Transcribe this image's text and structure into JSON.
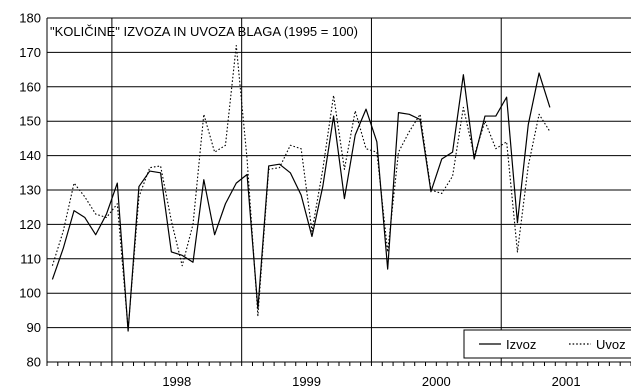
{
  "chart_data": {
    "type": "line",
    "title": "\"KOLIČINE\" IZVOZA IN UVOZA BLAGA (1995 = 100)",
    "xlabel": "",
    "ylabel": "",
    "ylim": [
      80,
      180
    ],
    "yticks": [
      80,
      90,
      100,
      110,
      120,
      130,
      140,
      150,
      160,
      170,
      180
    ],
    "year_labels": [
      "1998",
      "1999",
      "2000",
      "2001"
    ],
    "grid": true,
    "legend_position": "bottom-right",
    "x_months": 54,
    "series": [
      {
        "name": "Izvoz",
        "style": "solid",
        "color": "#000000",
        "values": [
          104,
          113,
          124,
          122,
          117,
          123,
          132,
          89,
          131,
          135.5,
          135,
          112,
          111,
          109,
          133,
          117,
          126,
          132,
          134.5,
          95.5,
          137,
          137.5,
          135,
          128.5,
          116.5,
          131,
          151.5,
          127.5,
          146,
          153.5,
          144,
          107,
          152.5,
          152,
          150.5,
          129.5,
          139,
          141,
          163.5,
          139,
          151.5,
          151.5,
          157,
          120.5,
          149,
          164,
          154
        ]
      },
      {
        "name": "Uvoz",
        "style": "dotted",
        "color": "#000000",
        "values": [
          108,
          118,
          132,
          128,
          123,
          122,
          126,
          89.5,
          128,
          136.5,
          137,
          121,
          108,
          120,
          152,
          141,
          143,
          172,
          139,
          93.5,
          136,
          136.5,
          143,
          142,
          118,
          136,
          157.5,
          136,
          153,
          142,
          141,
          112,
          141,
          147,
          152,
          130,
          129,
          134,
          154,
          140,
          150,
          142,
          144,
          112,
          137,
          152,
          147
        ]
      }
    ]
  }
}
